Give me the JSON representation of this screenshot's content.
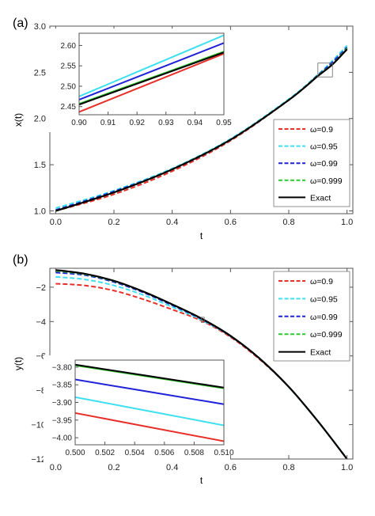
{
  "chart_data": [
    {
      "type": "line",
      "panel_label": "(a)",
      "xlabel": "t",
      "ylabel": "x(t)",
      "xlim": [
        -0.02,
        1.02
      ],
      "ylim": [
        0.97,
        3.0
      ],
      "xticks": [
        0.0,
        0.2,
        0.4,
        0.6,
        0.8,
        1.0
      ],
      "xtick_labels": [
        "0.0",
        "0.2",
        "0.4",
        "0.6",
        "0.8",
        "1.0"
      ],
      "yticks": [
        1.0,
        1.5,
        2.0,
        2.5,
        3.0
      ],
      "ytick_labels": [
        "1.0",
        "1.5",
        "2.0",
        "2.5",
        "3.0"
      ],
      "legend_position": "center-right",
      "zoom_box": {
        "x": [
          0.9,
          0.95
        ],
        "y": [
          2.45,
          2.6
        ]
      },
      "series": [
        {
          "name": "ω=0.9",
          "color": "#e8302a",
          "dash": true,
          "x": [
            0.0,
            0.2,
            0.4,
            0.6,
            0.8,
            0.9,
            0.95,
            1.0
          ],
          "y": [
            1.0,
            1.18,
            1.43,
            1.76,
            2.2,
            2.46,
            2.59,
            2.75
          ]
        },
        {
          "name": "ω=0.95",
          "color": "#3ee0f0",
          "dash": true,
          "x": [
            0.0,
            0.2,
            0.4,
            0.6,
            0.8,
            0.9,
            0.95,
            1.0
          ],
          "y": [
            1.03,
            1.22,
            1.46,
            1.78,
            2.21,
            2.475,
            2.625,
            2.79
          ]
        },
        {
          "name": "ω=0.99",
          "color": "#1f22d6",
          "dash": true,
          "x": [
            0.0,
            0.2,
            0.4,
            0.6,
            0.8,
            0.9,
            0.95,
            1.0
          ],
          "y": [
            1.01,
            1.21,
            1.45,
            1.77,
            2.2,
            2.47,
            2.61,
            2.77
          ]
        },
        {
          "name": "ω=0.999",
          "color": "#2fc82f",
          "dash": true,
          "x": [
            0.0,
            0.2,
            0.4,
            0.6,
            0.8,
            0.9,
            0.95,
            1.0
          ],
          "y": [
            1.0,
            1.2,
            1.45,
            1.77,
            2.2,
            2.465,
            2.59,
            2.76
          ]
        },
        {
          "name": "Exact",
          "color": "#000000",
          "dash": false,
          "x": [
            0.0,
            0.2,
            0.4,
            0.6,
            0.8,
            0.9,
            0.95,
            1.0
          ],
          "y": [
            1.0,
            1.2,
            1.45,
            1.77,
            2.2,
            2.46,
            2.585,
            2.75
          ]
        }
      ],
      "inset": {
        "xlim": [
          0.9,
          0.95
        ],
        "ylim": [
          2.43,
          2.63
        ],
        "xticks": [
          0.9,
          0.91,
          0.92,
          0.93,
          0.94,
          0.95
        ],
        "xtick_labels": [
          "0.90",
          "0.91",
          "0.92",
          "0.93",
          "0.94",
          "0.95"
        ],
        "yticks": [
          2.45,
          2.5,
          2.55,
          2.6
        ],
        "ytick_labels": [
          "2.45",
          "2.50",
          "2.55",
          "2.60"
        ],
        "series": [
          {
            "name": "ω=0.9",
            "color": "#e8302a",
            "x": [
              0.9,
              0.95
            ],
            "y": [
              2.437,
              2.58
            ]
          },
          {
            "name": "ω=0.95",
            "color": "#3ee0f0",
            "x": [
              0.9,
              0.95
            ],
            "y": [
              2.475,
              2.625
            ]
          },
          {
            "name": "ω=0.99",
            "color": "#1f22d6",
            "x": [
              0.9,
              0.95
            ],
            "y": [
              2.467,
              2.606
            ]
          },
          {
            "name": "ω=0.999",
            "color": "#2fc82f",
            "x": [
              0.9,
              0.95
            ],
            "y": [
              2.457,
              2.585
            ]
          },
          {
            "name": "Exact",
            "color": "#000000",
            "x": [
              0.9,
              0.95
            ],
            "y": [
              2.455,
              2.583
            ]
          }
        ]
      }
    },
    {
      "type": "line",
      "panel_label": "(b)",
      "xlabel": "t",
      "ylabel": "y(t)",
      "xlim": [
        -0.02,
        1.02
      ],
      "ylim": [
        -12.0,
        -0.9
      ],
      "xticks": [
        0.0,
        0.2,
        0.4,
        0.6,
        0.8,
        1.0
      ],
      "xtick_labels": [
        "0.0",
        "0.2",
        "0.4",
        "0.6",
        "0.8",
        "1.0"
      ],
      "yticks": [
        -2,
        -4,
        -6,
        -8,
        -10,
        -12
      ],
      "ytick_labels": [
        "−2",
        "−4",
        "−6",
        "−8",
        "−10",
        "−12"
      ],
      "legend_position": "top-right",
      "zoom_box": {
        "x": [
          0.5,
          0.51
        ],
        "y": [
          -4.05,
          -3.75
        ]
      },
      "series": [
        {
          "name": "ω=0.9",
          "color": "#e8302a",
          "dash": true,
          "x": [
            0.0,
            0.1,
            0.2,
            0.3,
            0.4,
            0.5,
            0.6,
            0.7,
            0.8,
            0.9,
            1.0
          ],
          "y": [
            -1.8,
            -1.9,
            -2.2,
            -2.7,
            -3.3,
            -3.95,
            -4.9,
            -6.2,
            -7.8,
            -9.8,
            -12.0
          ]
        },
        {
          "name": "ω=0.95",
          "color": "#3ee0f0",
          "dash": true,
          "x": [
            0.0,
            0.1,
            0.2,
            0.3,
            0.4,
            0.5,
            0.6,
            0.7,
            0.8,
            0.9,
            1.0
          ],
          "y": [
            -1.4,
            -1.55,
            -1.9,
            -2.45,
            -3.15,
            -3.9,
            -4.85,
            -6.15,
            -7.8,
            -9.8,
            -12.0
          ]
        },
        {
          "name": "ω=0.99",
          "color": "#1f22d6",
          "dash": true,
          "x": [
            0.0,
            0.1,
            0.2,
            0.3,
            0.4,
            0.5,
            0.6,
            0.7,
            0.8,
            0.9,
            1.0
          ],
          "y": [
            -1.15,
            -1.3,
            -1.7,
            -2.3,
            -3.05,
            -3.85,
            -4.85,
            -6.15,
            -7.8,
            -9.8,
            -12.0
          ]
        },
        {
          "name": "ω=0.999",
          "color": "#2fc82f",
          "dash": true,
          "x": [
            0.0,
            0.1,
            0.2,
            0.3,
            0.4,
            0.5,
            0.6,
            0.7,
            0.8,
            0.9,
            1.0
          ],
          "y": [
            -1.05,
            -1.25,
            -1.65,
            -2.25,
            -3.0,
            -3.82,
            -4.83,
            -6.15,
            -7.8,
            -9.8,
            -12.0
          ]
        },
        {
          "name": "Exact",
          "color": "#000000",
          "dash": false,
          "x": [
            0.0,
            0.1,
            0.2,
            0.3,
            0.4,
            0.5,
            0.6,
            0.7,
            0.8,
            0.9,
            1.0
          ],
          "y": [
            -1.0,
            -1.22,
            -1.63,
            -2.25,
            -3.0,
            -3.82,
            -4.83,
            -6.15,
            -7.8,
            -9.8,
            -12.0
          ]
        }
      ],
      "inset": {
        "xlim": [
          0.5,
          0.51
        ],
        "ylim": [
          -4.02,
          -3.78
        ],
        "xticks": [
          0.5,
          0.502,
          0.504,
          0.506,
          0.508,
          0.51
        ],
        "xtick_labels": [
          "0.500",
          "0.502",
          "0.504",
          "0.506",
          "0.508",
          "0.510"
        ],
        "yticks": [
          -3.8,
          -3.85,
          -3.9,
          -3.95,
          -4.0
        ],
        "ytick_labels": [
          "−3.80",
          "−3.85",
          "−3.90",
          "−3.95",
          "−4.00"
        ],
        "series": [
          {
            "name": "ω=0.9",
            "color": "#e8302a",
            "x": [
              0.5,
              0.51
            ],
            "y": [
              -3.93,
              -4.01
            ]
          },
          {
            "name": "ω=0.95",
            "color": "#3ee0f0",
            "x": [
              0.5,
              0.51
            ],
            "y": [
              -3.885,
              -3.965
            ]
          },
          {
            "name": "ω=0.99",
            "color": "#1f22d6",
            "x": [
              0.5,
              0.51
            ],
            "y": [
              -3.835,
              -3.905
            ]
          },
          {
            "name": "ω=0.999",
            "color": "#2fc82f",
            "x": [
              0.5,
              0.51
            ],
            "y": [
              -3.795,
              -3.86
            ]
          },
          {
            "name": "Exact",
            "color": "#000000",
            "x": [
              0.5,
              0.51
            ],
            "y": [
              -3.793,
              -3.858
            ]
          }
        ]
      }
    }
  ]
}
